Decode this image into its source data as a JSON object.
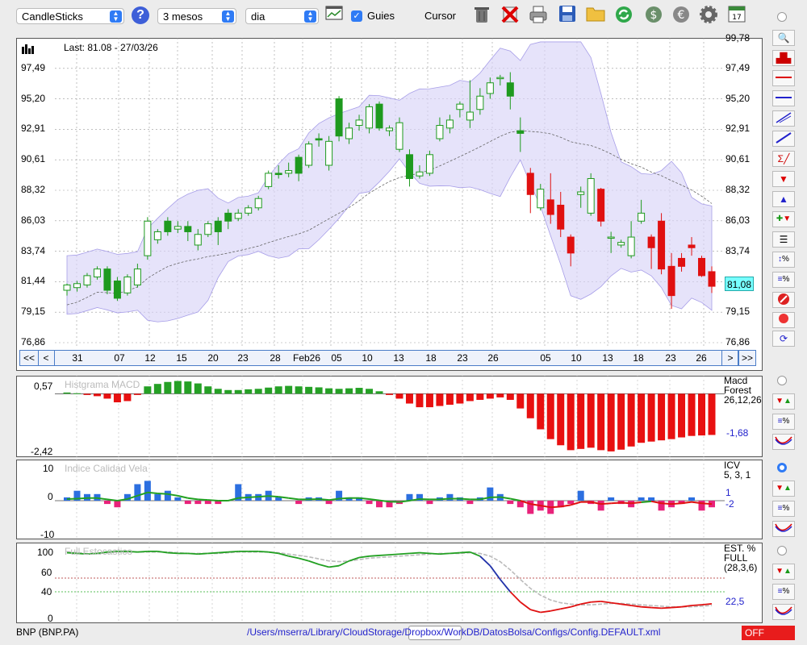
{
  "toolbar": {
    "chart_type": "CandleSticks",
    "period": "3 mesos",
    "interval": "dia",
    "guides_label": "Guies",
    "guides_checked": true,
    "cursor_label": "Cursor",
    "cursor_checked": false
  },
  "main_chart": {
    "last_info": "Last: 81.08 - 27/03/26",
    "current_value": "81,08",
    "y_labels": [
      "97,49",
      "95,20",
      "92,91",
      "90,61",
      "88,32",
      "86,03",
      "83,74",
      "81,44",
      "79,15",
      "76,86"
    ],
    "y_top_partial": "99,78",
    "x_labels": [
      "31",
      "07",
      "12",
      "15",
      "20",
      "23",
      "28",
      "Feb26",
      "05",
      "10",
      "13",
      "18",
      "23",
      "26",
      "05",
      "10",
      "13",
      "18",
      "23",
      "26"
    ],
    "nav": {
      "first": "<<",
      "prev": "<",
      "next": ">",
      "last": ">>"
    }
  },
  "macd_panel": {
    "title": "Histgrama MACD",
    "y_top": "0,57",
    "y_bottom": "-2,42",
    "name": "Macd Forest",
    "params": "26,12,26",
    "value": "-1,68"
  },
  "icv_panel": {
    "title": "Indice Calidad Vela",
    "y_top": "10",
    "y_mid": "0",
    "y_bottom": "-10",
    "name": "ICV",
    "params": "5, 3, 1",
    "value_pos": "1",
    "value_neg": "-2"
  },
  "stoch_panel": {
    "title": "Full Estocastico",
    "y_labels": [
      "100",
      "60",
      "40",
      "0"
    ],
    "name": "EST. %",
    "name2": "FULL",
    "params": "(28,3,6)",
    "value": "22,5"
  },
  "status": {
    "symbol": "BNP (BNP.PA)",
    "config_path": "/Users/mserra/Library/CloudStorage/Dropbox/WorkDB/DatosBolsa/Configs/Config.DEFAULT.xml",
    "mode": "OFF"
  },
  "chart_data": {
    "type": "candlestick",
    "ylim": [
      76.86,
      99.78
    ],
    "candles": [
      [
        80.8,
        81.2,
        80.4,
        81.3
      ],
      [
        81.0,
        81.3,
        80.7,
        81.5
      ],
      [
        81.2,
        81.9,
        81.0,
        82.1
      ],
      [
        81.8,
        82.4,
        81.6,
        82.6
      ],
      [
        82.4,
        80.8,
        80.5,
        82.6
      ],
      [
        81.5,
        80.2,
        80.0,
        81.8
      ],
      [
        80.6,
        81.8,
        80.4,
        82.0
      ],
      [
        81.2,
        82.4,
        81.0,
        82.8
      ],
      [
        83.4,
        86.0,
        83.1,
        86.3
      ],
      [
        84.6,
        85.2,
        84.3,
        85.4
      ],
      [
        86.0,
        85.2,
        84.9,
        86.3
      ],
      [
        85.4,
        85.6,
        85.1,
        86.0
      ],
      [
        85.6,
        85.2,
        84.5,
        86.0
      ],
      [
        84.2,
        85.0,
        83.8,
        85.4
      ],
      [
        85.0,
        85.8,
        84.8,
        86.0
      ],
      [
        86.0,
        85.2,
        84.2,
        86.3
      ],
      [
        86.6,
        86.0,
        85.4,
        86.9
      ],
      [
        86.2,
        86.6,
        86.0,
        86.9
      ],
      [
        86.6,
        87.0,
        86.4,
        87.2
      ],
      [
        87.0,
        87.7,
        86.8,
        87.9
      ],
      [
        88.6,
        89.6,
        88.4,
        89.8
      ],
      [
        89.6,
        89.5,
        89.2,
        90.2
      ],
      [
        89.6,
        89.8,
        89.3,
        90.4
      ],
      [
        90.8,
        89.6,
        89.0,
        91.0
      ],
      [
        90.2,
        91.8,
        90.0,
        92.0
      ],
      [
        92.2,
        92.1,
        91.6,
        92.6
      ],
      [
        90.2,
        92.0,
        89.8,
        92.4
      ],
      [
        95.2,
        92.4,
        92.0,
        95.4
      ],
      [
        92.2,
        93.0,
        91.8,
        93.4
      ],
      [
        93.2,
        93.6,
        92.8,
        94.0
      ],
      [
        93.0,
        94.6,
        92.6,
        94.8
      ],
      [
        94.8,
        93.0,
        92.8,
        95.0
      ],
      [
        92.8,
        93.0,
        92.4,
        93.2
      ],
      [
        91.4,
        93.4,
        91.2,
        93.8
      ],
      [
        91.0,
        89.2,
        88.6,
        91.4
      ],
      [
        89.4,
        89.7,
        89.2,
        90.2
      ],
      [
        89.6,
        91.0,
        89.4,
        91.3
      ],
      [
        92.2,
        93.2,
        92.0,
        93.8
      ],
      [
        93.0,
        93.6,
        92.6,
        94.0
      ],
      [
        94.4,
        94.8,
        93.8,
        95.0
      ],
      [
        93.6,
        94.2,
        93.0,
        96.6
      ],
      [
        94.4,
        95.4,
        94.0,
        96.0
      ],
      [
        95.6,
        96.4,
        95.2,
        96.8
      ],
      [
        96.8,
        96.8,
        96.2,
        97.0
      ],
      [
        96.4,
        95.4,
        94.4,
        97.2
      ],
      [
        92.8,
        92.6,
        91.2,
        93.8
      ],
      [
        89.6,
        88.0,
        86.6,
        90.0
      ],
      [
        87.0,
        88.4,
        86.8,
        88.8
      ],
      [
        87.6,
        86.5,
        85.8,
        89.6
      ],
      [
        87.2,
        85.4,
        84.8,
        88.2
      ],
      [
        84.8,
        83.6,
        82.6,
        85.0
      ],
      [
        88.0,
        88.2,
        87.0,
        88.6
      ],
      [
        86.6,
        89.2,
        86.4,
        89.6
      ],
      [
        88.4,
        86.0,
        85.6,
        88.5
      ],
      [
        84.8,
        84.8,
        83.6,
        85.2
      ],
      [
        84.2,
        84.4,
        84.0,
        84.6
      ],
      [
        83.4,
        84.8,
        83.2,
        86.0
      ],
      [
        86.0,
        86.6,
        85.8,
        87.6
      ],
      [
        84.8,
        84.0,
        82.4,
        85.0
      ],
      [
        86.0,
        82.4,
        82.0,
        86.6
      ],
      [
        82.6,
        80.4,
        79.4,
        83.6
      ],
      [
        83.2,
        82.6,
        82.2,
        83.6
      ],
      [
        84.2,
        84.0,
        83.4,
        84.8
      ],
      [
        83.2,
        81.9,
        81.8,
        83.4
      ],
      [
        82.2,
        81.1,
        80.6,
        82.6
      ]
    ],
    "macd_histogram": [
      0.05,
      0.02,
      -0.05,
      -0.1,
      -0.2,
      -0.35,
      -0.3,
      -0.05,
      0.3,
      0.4,
      0.48,
      0.52,
      0.5,
      0.42,
      0.3,
      0.2,
      0.15,
      0.15,
      0.18,
      0.2,
      0.25,
      0.3,
      0.32,
      0.3,
      0.28,
      0.26,
      0.22,
      0.2,
      0.22,
      0.24,
      0.2,
      0.1,
      -0.05,
      -0.2,
      -0.4,
      -0.55,
      -0.55,
      -0.5,
      -0.45,
      -0.4,
      -0.3,
      -0.25,
      -0.2,
      -0.15,
      -0.25,
      -0.6,
      -1.0,
      -1.45,
      -1.85,
      -2.1,
      -2.3,
      -2.25,
      -2.2,
      -2.3,
      -2.35,
      -2.28,
      -2.15,
      -2.0,
      -1.95,
      -1.9,
      -1.85,
      -1.78,
      -1.72,
      -1.7,
      -1.68
    ],
    "icv": [
      1,
      3,
      2,
      2,
      -1,
      -2,
      2,
      5,
      6,
      2,
      3,
      1,
      -1,
      -1,
      -1,
      -1,
      0,
      5,
      2,
      2,
      3,
      1,
      0,
      -1,
      1,
      1,
      -1,
      3,
      1,
      1,
      -1,
      -2,
      -2,
      -1,
      2,
      2,
      -1,
      1,
      2,
      1,
      -1,
      1,
      4,
      2,
      -1,
      -2,
      -4,
      -3,
      -4,
      -2,
      -1,
      3,
      -1,
      -3,
      1,
      -1,
      -2,
      1,
      1,
      -3,
      -2,
      -1,
      1,
      -3,
      -2
    ],
    "icv_signal": [
      0.5,
      0.6,
      0.8,
      0.8,
      0.4,
      0,
      0.5,
      1.5,
      2.5,
      2.2,
      2,
      1.5,
      0.8,
      0.4,
      0.2,
      0,
      0,
      0.8,
      1.0,
      1.2,
      1.4,
      1.2,
      0.8,
      0.4,
      0.4,
      0.5,
      0.2,
      0.6,
      0.8,
      0.8,
      0.5,
      0.1,
      -0.3,
      -0.4,
      0,
      0.5,
      0.4,
      0.4,
      0.6,
      0.6,
      0.4,
      0.4,
      1,
      1.1,
      0.6,
      0,
      -1,
      -1.5,
      -2,
      -1.8,
      -1.3,
      -0.4,
      -0.4,
      -1,
      -0.8,
      -0.6,
      -0.8,
      -0.5,
      -0.2,
      -0.8,
      -1,
      -0.8,
      -0.4,
      -0.8,
      -1
    ],
    "stoch_k": [
      97,
      96,
      95,
      96,
      98,
      99,
      99,
      98,
      99,
      99,
      97,
      96,
      96,
      95,
      96,
      97,
      98,
      99,
      99,
      99,
      98,
      96,
      92,
      89,
      85,
      80,
      76,
      78,
      85,
      90,
      92,
      93,
      94,
      95,
      96,
      97,
      96,
      95,
      96,
      97,
      98,
      92,
      78,
      58,
      40,
      25,
      14,
      10,
      12,
      15,
      18,
      22,
      25,
      26,
      24,
      22,
      20,
      18,
      17,
      16,
      17,
      18,
      20,
      21,
      22.5
    ],
    "stoch_d": [
      98,
      97,
      96,
      96,
      97,
      98,
      98,
      98,
      98,
      98,
      98,
      97,
      96,
      96,
      96,
      96,
      97,
      98,
      98,
      98,
      98,
      97,
      95,
      93,
      91,
      88,
      85,
      84,
      85,
      87,
      89,
      90,
      91,
      92,
      93,
      94,
      95,
      96,
      96,
      96,
      97,
      96,
      92,
      84,
      72,
      58,
      45,
      35,
      28,
      24,
      22,
      21,
      21,
      22,
      23,
      23,
      22,
      21,
      20,
      19,
      18,
      18,
      18,
      19,
      20
    ]
  }
}
